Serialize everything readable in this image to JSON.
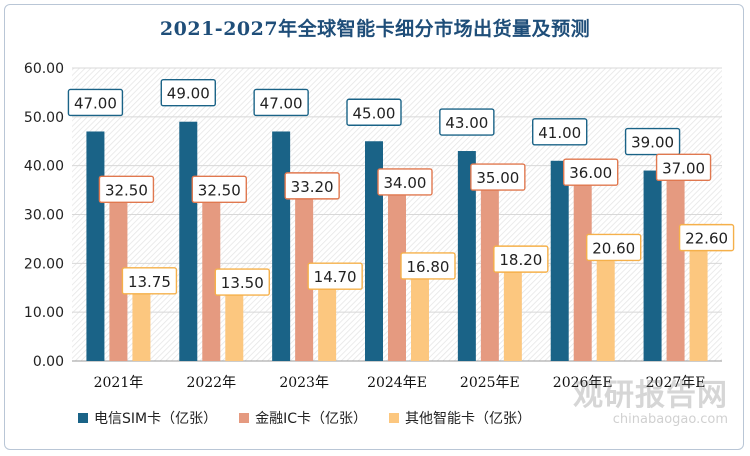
{
  "chart_data": {
    "type": "bar",
    "title": "2021-2027年全球智能卡细分市场出货量及预测",
    "categories": [
      "2021年",
      "2022年",
      "2023年",
      "2024年E",
      "2025年E",
      "2026年E",
      "2027年E"
    ],
    "ylim": [
      0,
      60
    ],
    "yticks": [
      "0.00",
      "10.00",
      "20.00",
      "30.00",
      "40.00",
      "50.00",
      "60.00"
    ],
    "series": [
      {
        "name": "电信SIM卡（亿张）",
        "color": "#1a6387",
        "values": [
          47.0,
          49.0,
          47.0,
          45.0,
          43.0,
          41.0,
          39.0
        ],
        "labels": [
          "47.00",
          "49.00",
          "47.00",
          "45.00",
          "43.00",
          "41.00",
          "39.00"
        ],
        "label_border": "#1a6387"
      },
      {
        "name": "金融IC卡（亿张）",
        "color": "#e59a80",
        "values": [
          32.5,
          32.5,
          33.2,
          34.0,
          35.0,
          36.0,
          37.0
        ],
        "labels": [
          "32.50",
          "32.50",
          "33.20",
          "34.00",
          "35.00",
          "36.00",
          "37.00"
        ],
        "label_border": "#e0784f"
      },
      {
        "name": "其他智能卡（亿张）",
        "color": "#fcc77f",
        "values": [
          13.75,
          13.5,
          14.7,
          16.8,
          18.2,
          20.6,
          22.6
        ],
        "labels": [
          "13.75",
          "13.50",
          "14.70",
          "16.80",
          "18.20",
          "20.60",
          "22.60"
        ],
        "label_border": "#f5b04a"
      }
    ],
    "grid": true,
    "legend": "bottom"
  },
  "watermark": {
    "cn": "观研报告网",
    "en": "chinabaogao.com"
  }
}
